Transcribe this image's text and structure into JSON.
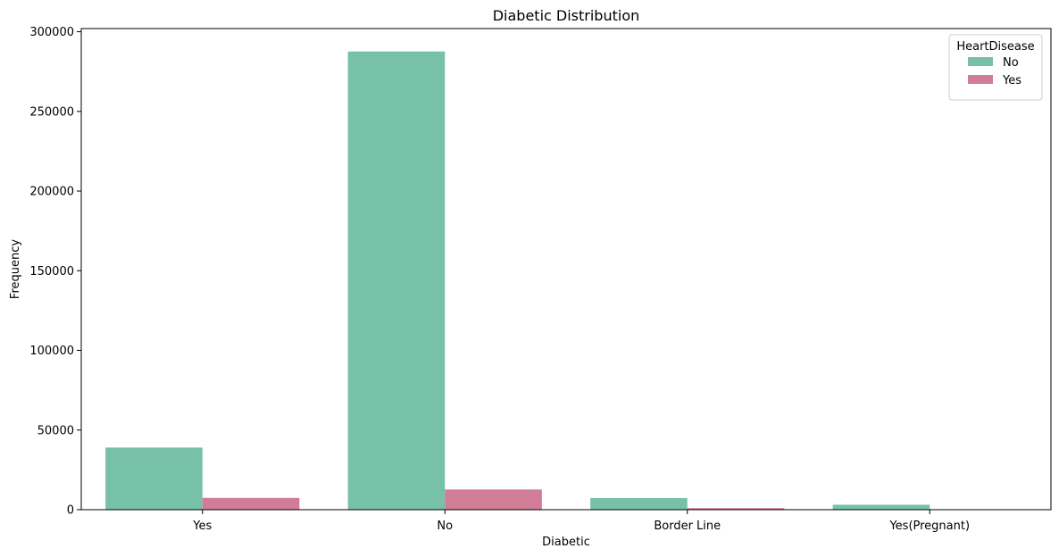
{
  "chart_data": {
    "type": "bar",
    "title": "Diabetic Distribution",
    "xlabel": "Diabetic",
    "ylabel": "Frequency",
    "categories": [
      "Yes",
      "No",
      "Border Line",
      "Yes(Pregnant)"
    ],
    "series": [
      {
        "name": "No",
        "color": "#76c1a7",
        "values": [
          39000,
          287600,
          7300,
          3100
        ]
      },
      {
        "name": "Yes",
        "color": "#d17d98",
        "values": [
          7400,
          12700,
          1000,
          200
        ]
      }
    ],
    "ylim": [
      0,
      302000
    ],
    "yticks": [
      0,
      50000,
      100000,
      150000,
      200000,
      250000,
      300000
    ],
    "grid": false,
    "legend": {
      "title": "HeartDisease",
      "position": "top-right"
    }
  }
}
